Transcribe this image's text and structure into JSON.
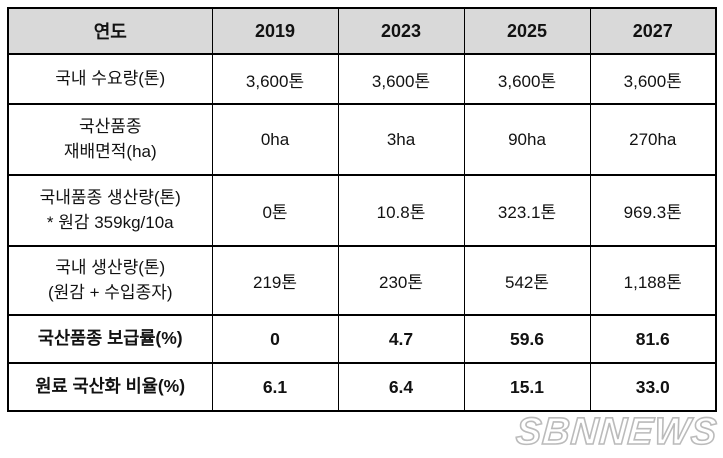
{
  "watermark": "SBNNEWS",
  "colors": {
    "header_bg": "#d9d9d9",
    "border": "#000000",
    "text": "#121212",
    "watermark": "#bfbfbf",
    "background": "#ffffff"
  },
  "table": {
    "header": {
      "label": "연도",
      "years": [
        "2019",
        "2023",
        "2025",
        "2027"
      ]
    },
    "rows": [
      {
        "label_lines": [
          "국내 수요량(톤)",
          ""
        ],
        "values": [
          "3,600톤",
          "3,600톤",
          "3,600톤",
          "3,600톤"
        ],
        "bold": false
      },
      {
        "label_lines": [
          "국산품종",
          "재배면적(ha)"
        ],
        "values": [
          "0ha",
          "3ha",
          "90ha",
          "270ha"
        ],
        "bold": false
      },
      {
        "label_lines": [
          "국내품종 생산량(톤)",
          "* 원감 359kg/10a"
        ],
        "values": [
          "0톤",
          "10.8톤",
          "323.1톤",
          "969.3톤"
        ],
        "bold": false
      },
      {
        "label_lines": [
          "국내 생산량(톤)",
          "(원감 + 수입종자)"
        ],
        "values": [
          "219톤",
          "230톤",
          "542톤",
          "1,188톤"
        ],
        "bold": false
      },
      {
        "label_lines": [
          "국산품종 보급률(%)",
          ""
        ],
        "values": [
          "0",
          "4.7",
          "59.6",
          "81.6"
        ],
        "bold": true
      },
      {
        "label_lines": [
          "원료 국산화 비율(%)",
          ""
        ],
        "values": [
          "6.1",
          "6.4",
          "15.1",
          "33.0"
        ],
        "bold": true
      }
    ]
  },
  "chart_data": {
    "type": "table",
    "title": "",
    "columns": [
      "연도",
      "2019",
      "2023",
      "2025",
      "2027"
    ],
    "rows": [
      [
        "국내 수요량(톤)",
        "3,600톤",
        "3,600톤",
        "3,600톤",
        "3,600톤"
      ],
      [
        "국산품종 재배면적(ha)",
        "0ha",
        "3ha",
        "90ha",
        "270ha"
      ],
      [
        "국내품종 생산량(톤) * 원감 359kg/10a",
        "0톤",
        "10.8톤",
        "323.1톤",
        "969.3톤"
      ],
      [
        "국내 생산량(톤) (원감 + 수입종자)",
        "219톤",
        "230톤",
        "542톤",
        "1,188톤"
      ],
      [
        "국산품종 보급률(%)",
        "0",
        "4.7",
        "59.6",
        "81.6"
      ],
      [
        "원료 국산화 비율(%)",
        "6.1",
        "6.4",
        "15.1",
        "33.0"
      ]
    ]
  }
}
